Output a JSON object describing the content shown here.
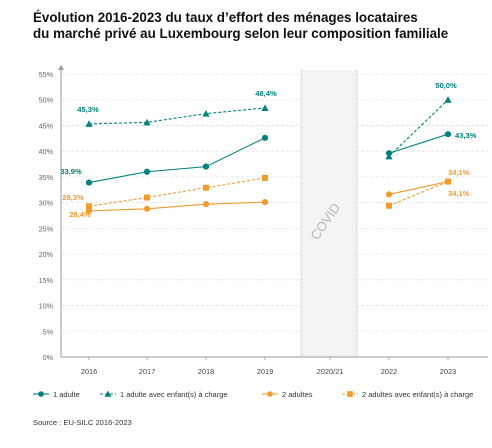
{
  "title_line1": "Évolution 2016-2023 du taux d’effort des ménages locataires",
  "title_line2": "du marché privé au Luxembourg selon leur composition familiale",
  "source": "Source : EU-SILC 2016-2023",
  "covid_label": "COVID",
  "colors": {
    "teal": "#00827f",
    "orange": "#f39a2d",
    "grid": "#e3e3e3",
    "axis": "#9a9a9a",
    "covid_band": "#e6e6e6"
  },
  "chart_data": {
    "type": "line",
    "categories": [
      "2016",
      "2017",
      "2018",
      "2019",
      "2020/21",
      "2022",
      "2023"
    ],
    "ylim": [
      0,
      55
    ],
    "yticks": [
      "0%",
      "5%",
      "10%",
      "15%",
      "20%",
      "25%",
      "30%",
      "35%",
      "40%",
      "45%",
      "50%",
      "55%"
    ],
    "grid": true,
    "legend_position": "bottom",
    "series": [
      {
        "name": "1 adulte",
        "color": "#00827f",
        "dashed": false,
        "marker": "circle",
        "values": [
          33.9,
          36.0,
          37.0,
          42.6,
          null,
          39.6,
          43.3
        ],
        "labels": [
          "33,9%",
          "",
          "",
          "",
          "",
          "",
          "43,3%"
        ]
      },
      {
        "name": "1 adulte avec enfant(s) à charge",
        "color": "#00827f",
        "dashed": true,
        "marker": "triangle",
        "values": [
          45.3,
          45.6,
          47.3,
          48.4,
          null,
          39.0,
          50.0
        ],
        "labels": [
          "45,3%",
          "",
          "",
          "48,4%",
          "",
          "",
          "50,0%"
        ]
      },
      {
        "name": "2 adultes",
        "color": "#f39a2d",
        "dashed": false,
        "marker": "circle",
        "values": [
          28.4,
          28.8,
          29.7,
          30.1,
          null,
          31.6,
          34.1
        ],
        "labels": [
          "28,4%",
          "",
          "",
          "",
          "",
          "",
          "34,1%"
        ]
      },
      {
        "name": "2 adultes avec enfant(s) à charge",
        "color": "#f39a2d",
        "dashed": true,
        "marker": "square",
        "values": [
          29.3,
          31.0,
          32.9,
          34.8,
          null,
          29.4,
          34.1
        ],
        "labels": [
          "29,3%",
          "",
          "",
          "",
          "",
          "",
          "34,1%"
        ]
      }
    ]
  }
}
